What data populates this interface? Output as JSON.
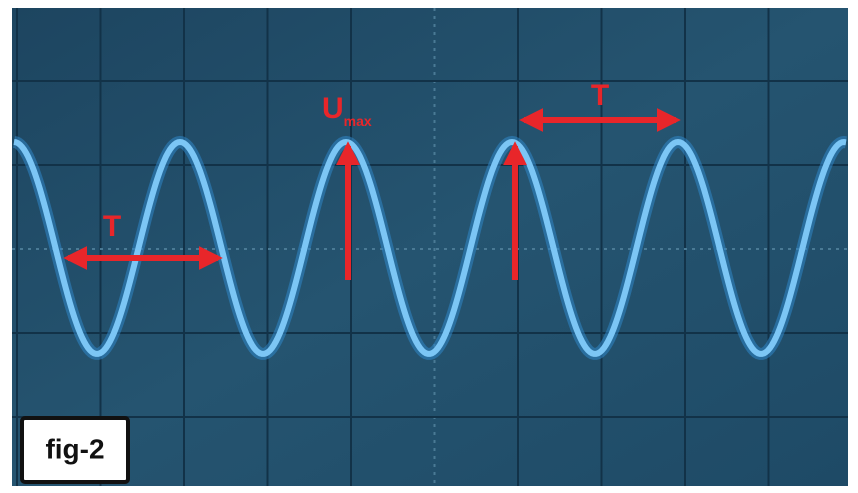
{
  "labels": {
    "period_left": "T",
    "amplitude": "U",
    "amplitude_subscript": "max",
    "period_right": "T"
  },
  "caption": "fig-2"
}
